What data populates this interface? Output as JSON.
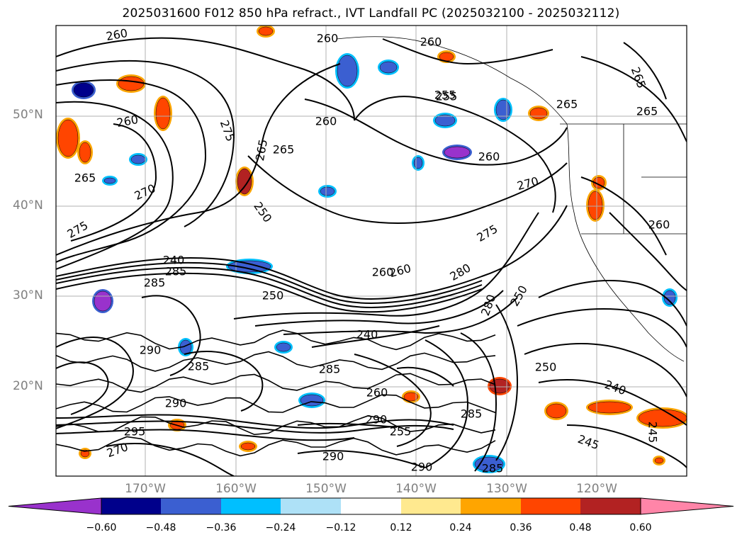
{
  "title": "2025031600 F012 850 hPa refract., IVT Landfall PC (2025032100 - 2025032112)",
  "map": {
    "lat_labels": [
      "50°N",
      "40°N",
      "30°N",
      "20°N"
    ],
    "lon_labels": [
      "170°W",
      "160°W",
      "150°W",
      "140°W",
      "130°W",
      "120°W"
    ],
    "contour_labels": [
      "260",
      "260",
      "260",
      "265",
      "255",
      "260",
      "265",
      "265",
      "265",
      "260",
      "255",
      "275",
      "260",
      "265",
      "270",
      "270",
      "250",
      "260",
      "275",
      "265",
      "260",
      "275",
      "285",
      "240",
      "285",
      "260",
      "280",
      "250",
      "245",
      "280",
      "290",
      "285",
      "240",
      "290",
      "285",
      "260",
      "290",
      "285",
      "295",
      "270",
      "290",
      "250",
      "240",
      "285",
      "290",
      "255",
      "245",
      "250"
    ]
  },
  "colorbar": {
    "tick_labels": [
      "−0.60",
      "−0.48",
      "−0.36",
      "−0.24",
      "−0.12",
      "0.12",
      "0.24",
      "0.36",
      "0.48",
      "0.60"
    ],
    "colors": [
      "#9932cc",
      "#00008b",
      "#3b5fd1",
      "#00bfff",
      "#aee1f7",
      "#ffffff",
      "#ffe98f",
      "#ffa500",
      "#ff4500",
      "#b22222",
      "#ff85a8"
    ]
  }
}
